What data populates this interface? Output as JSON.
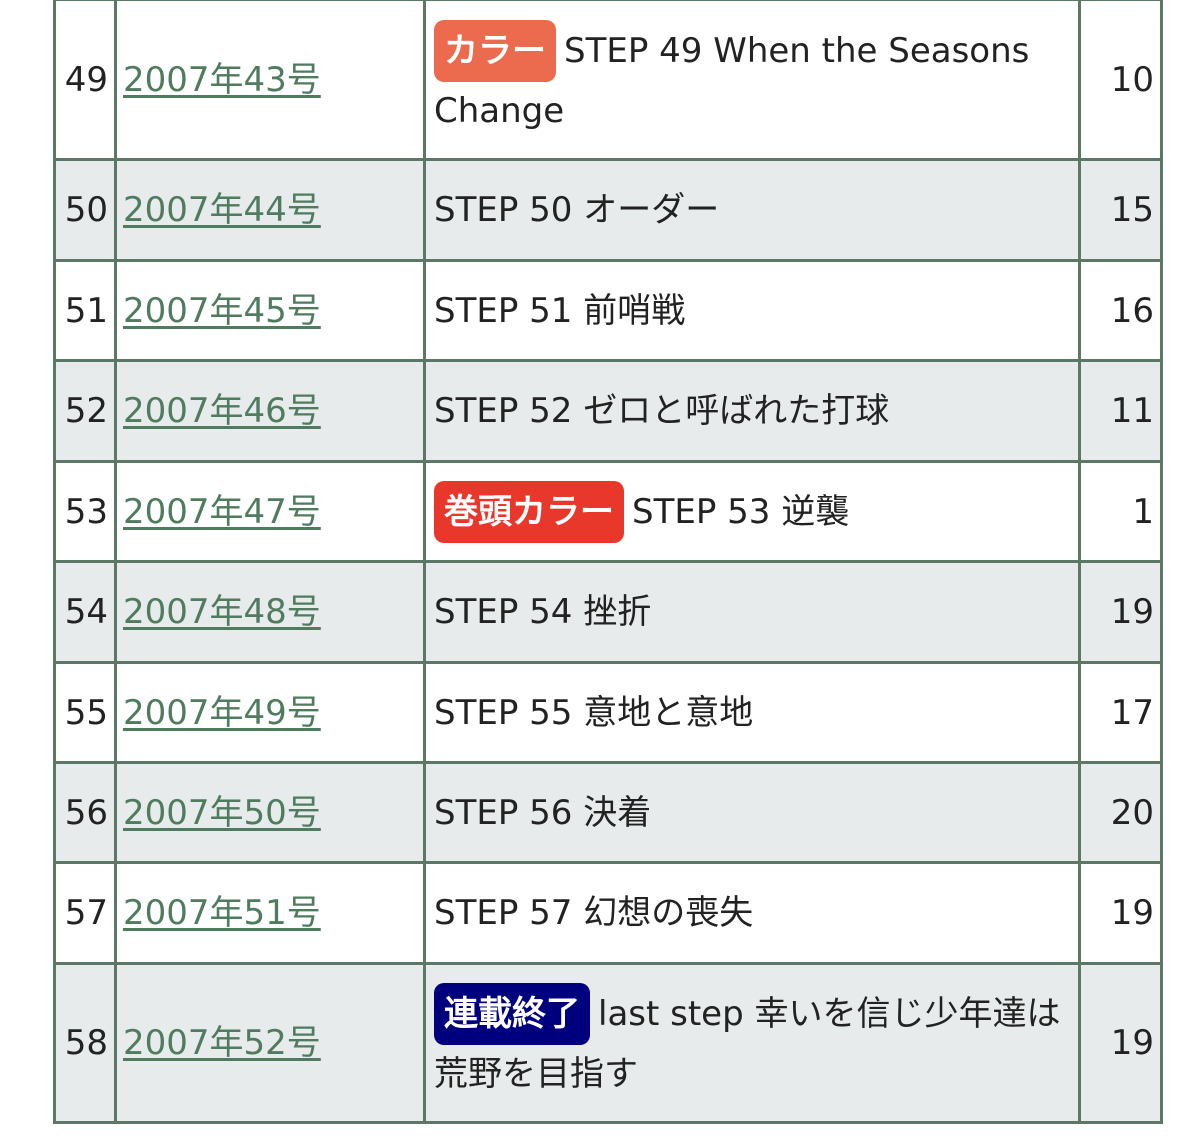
{
  "colors": {
    "border": "#5b7765",
    "link": "#4f7b5e",
    "row_alt": "#e7ebeb",
    "badge_color": "#ec6b4e",
    "badge_lead_color": "#e8382b",
    "badge_end": "#00007f"
  },
  "rows": [
    {
      "no": "49",
      "issue": "2007年43号",
      "badge": "カラー",
      "badge_type": "color",
      "title": "STEP 49 When the Seasons Change",
      "rank": "10"
    },
    {
      "no": "50",
      "issue": "2007年44号",
      "badge": "",
      "title": "STEP 50 オーダー",
      "rank": "15"
    },
    {
      "no": "51",
      "issue": "2007年45号",
      "badge": "",
      "title": "STEP 51 前哨戦",
      "rank": "16"
    },
    {
      "no": "52",
      "issue": "2007年46号",
      "badge": "",
      "title": "STEP 52 ゼロと呼ばれた打球",
      "rank": "11"
    },
    {
      "no": "53",
      "issue": "2007年47号",
      "badge": "巻頭カラー",
      "badge_type": "lead",
      "title": "STEP 53 逆襲",
      "rank": "1"
    },
    {
      "no": "54",
      "issue": "2007年48号",
      "badge": "",
      "title": "STEP 54 挫折",
      "rank": "19"
    },
    {
      "no": "55",
      "issue": "2007年49号",
      "badge": "",
      "title": "STEP 55 意地と意地",
      "rank": "17"
    },
    {
      "no": "56",
      "issue": "2007年50号",
      "badge": "",
      "title": "STEP 56 決着",
      "rank": "20"
    },
    {
      "no": "57",
      "issue": "2007年51号",
      "badge": "",
      "title": "STEP 57 幻想の喪失",
      "rank": "19"
    },
    {
      "no": "58",
      "issue": "2007年52号",
      "badge": "連載終了",
      "badge_type": "end",
      "title": "last step 幸いを信じ少年達は荒野を目指す",
      "rank": "19"
    }
  ]
}
